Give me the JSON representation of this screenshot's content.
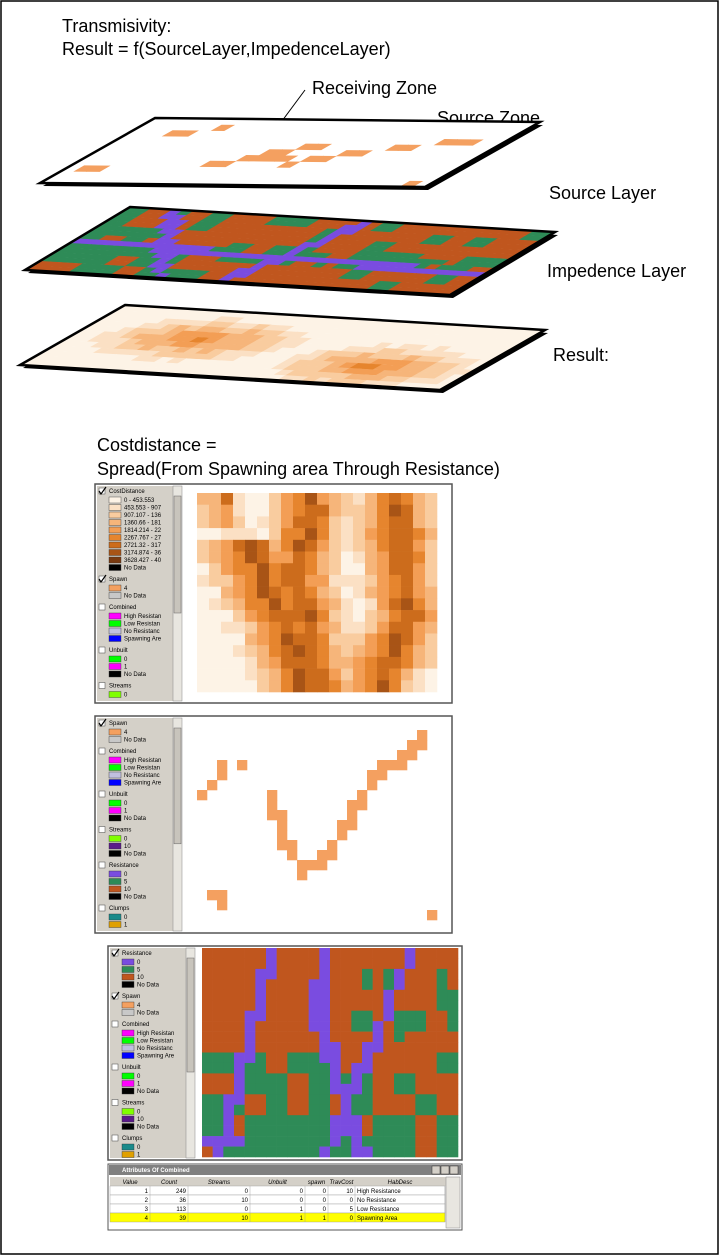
{
  "header": {
    "title": "Transmisivity:",
    "formula": "Result = f(SourceLayer,ImpedenceLayer)"
  },
  "layers": {
    "receiving_zone": "Receiving Zone",
    "source_zone": "Source Zone",
    "source_layer": "Source Layer",
    "impedence_layer": "Impedence Layer",
    "result": "Result:"
  },
  "costdistance": {
    "title": "Costdistance =",
    "formula": "Spread(From Spawning area Through Resistance)"
  },
  "panels": [
    {
      "legend": [
        {
          "name": "CostDistance",
          "checked": true,
          "items": [
            {
              "label": "0 - 453.553",
              "color": "#fdf3e6"
            },
            {
              "label": "453.553 - 907",
              "color": "#fbe0c4"
            },
            {
              "label": "907.107 - 136",
              "color": "#f9cc9f"
            },
            {
              "label": "1360.66 - 181",
              "color": "#f6b57a"
            },
            {
              "label": "1814.214 - 22",
              "color": "#f39e55"
            },
            {
              "label": "2267.767 - 27",
              "color": "#e6852e"
            },
            {
              "label": "2721.32 - 317",
              "color": "#cc6c1c"
            },
            {
              "label": "3174.874 - 36",
              "color": "#a85416"
            },
            {
              "label": "3628.427 - 40",
              "color": "#7a3a10"
            },
            {
              "label": "No Data",
              "color": "#000000"
            }
          ]
        },
        {
          "name": "Spawn",
          "checked": true,
          "items": [
            {
              "label": "4",
              "color": "#f4a060"
            },
            {
              "label": "No Data",
              "color": "#c8c8c8"
            }
          ]
        },
        {
          "name": "Combined",
          "checked": false,
          "items": [
            {
              "label": "High Resistan",
              "color": "#ff00ff"
            },
            {
              "label": "Low Resistan",
              "color": "#00ff00"
            },
            {
              "label": "No Resistanc",
              "color": "#c0c0e0"
            },
            {
              "label": "Spawning Are",
              "color": "#0000ff"
            }
          ]
        },
        {
          "name": "Unbuilt",
          "checked": false,
          "items": [
            {
              "label": "0",
              "color": "#00ff00"
            },
            {
              "label": "1",
              "color": "#ff00ff"
            },
            {
              "label": "No Data",
              "color": "#000000"
            }
          ]
        },
        {
          "name": "Streams",
          "checked": false,
          "items": [
            {
              "label": "0",
              "color": "#80ff00"
            }
          ]
        }
      ]
    },
    {
      "legend": [
        {
          "name": "Spawn",
          "checked": true,
          "items": [
            {
              "label": "4",
              "color": "#f4a060"
            },
            {
              "label": "No Data",
              "color": "#c8c8c8"
            }
          ]
        },
        {
          "name": "Combined",
          "checked": false,
          "items": [
            {
              "label": "High Resistan",
              "color": "#ff00ff"
            },
            {
              "label": "Low Resistan",
              "color": "#00ff00"
            },
            {
              "label": "No Resistanc",
              "color": "#c0c0e0"
            },
            {
              "label": "Spawning Are",
              "color": "#0000ff"
            }
          ]
        },
        {
          "name": "Unbuilt",
          "checked": false,
          "items": [
            {
              "label": "0",
              "color": "#00ff00"
            },
            {
              "label": "1",
              "color": "#ff00ff"
            },
            {
              "label": "No Data",
              "color": "#000000"
            }
          ]
        },
        {
          "name": "Streams",
          "checked": false,
          "items": [
            {
              "label": "0",
              "color": "#80ff00"
            },
            {
              "label": "10",
              "color": "#5a1a8a"
            },
            {
              "label": "No Data",
              "color": "#000000"
            }
          ]
        },
        {
          "name": "Resistance",
          "checked": false,
          "items": [
            {
              "label": "0",
              "color": "#7a4ce0"
            },
            {
              "label": "5",
              "color": "#2e8b57"
            },
            {
              "label": "10",
              "color": "#c0561e"
            },
            {
              "label": "No Data",
              "color": "#000000"
            }
          ]
        },
        {
          "name": "Clumps",
          "checked": false,
          "items": [
            {
              "label": "0",
              "color": "#1a8a8a"
            },
            {
              "label": "1",
              "color": "#e0a000"
            }
          ]
        }
      ]
    },
    {
      "legend": [
        {
          "name": "Resistance",
          "checked": true,
          "items": [
            {
              "label": "0",
              "color": "#7a4ce0"
            },
            {
              "label": "5",
              "color": "#2e8b57"
            },
            {
              "label": "10",
              "color": "#c0561e"
            },
            {
              "label": "No Data",
              "color": "#000000"
            }
          ]
        },
        {
          "name": "Spawn",
          "checked": true,
          "items": [
            {
              "label": "4",
              "color": "#f4a060"
            },
            {
              "label": "No Data",
              "color": "#c8c8c8"
            }
          ]
        },
        {
          "name": "Combined",
          "checked": false,
          "items": [
            {
              "label": "High Resistan",
              "color": "#ff00ff"
            },
            {
              "label": "Low Resistan",
              "color": "#00ff00"
            },
            {
              "label": "No Resistanc",
              "color": "#c0c0e0"
            },
            {
              "label": "Spawning Are",
              "color": "#0000ff"
            }
          ]
        },
        {
          "name": "Unbuilt",
          "checked": false,
          "items": [
            {
              "label": "0",
              "color": "#00ff00"
            },
            {
              "label": "1",
              "color": "#ff00ff"
            },
            {
              "label": "No Data",
              "color": "#000000"
            }
          ]
        },
        {
          "name": "Streams",
          "checked": false,
          "items": [
            {
              "label": "0",
              "color": "#80ff00"
            },
            {
              "label": "10",
              "color": "#5a1a8a"
            },
            {
              "label": "No Data",
              "color": "#000000"
            }
          ]
        },
        {
          "name": "Clumps",
          "checked": false,
          "items": [
            {
              "label": "0",
              "color": "#1a8a8a"
            },
            {
              "label": "1",
              "color": "#e0a000"
            }
          ]
        }
      ]
    }
  ],
  "table": {
    "title": "Attributes Of Combined",
    "columns": [
      "Value",
      "Count",
      "Streams",
      "Unbuilt",
      "spawn",
      "TravCost",
      "HabDesc"
    ],
    "rows": [
      [
        1,
        249,
        0,
        0,
        0,
        10,
        "High Resistance"
      ],
      [
        2,
        36,
        10,
        0,
        0,
        0,
        "No Resistance"
      ],
      [
        3,
        113,
        0,
        1,
        0,
        5,
        "Low Resistance"
      ],
      [
        4,
        39,
        10,
        1,
        1,
        0,
        "Spawning Area"
      ]
    ],
    "selected_row": 3
  }
}
